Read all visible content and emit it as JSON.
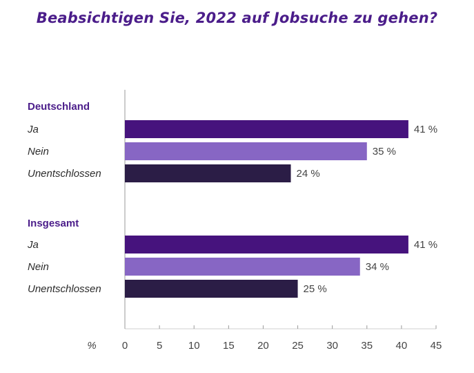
{
  "chart_data": {
    "type": "bar",
    "orientation": "horizontal",
    "title": "Beabsichtigen Sie, 2022 auf Jobsuche zu gehen?",
    "x_unit_label": "%",
    "xlim": [
      0,
      45
    ],
    "xticks": [
      0,
      5,
      10,
      15,
      20,
      25,
      30,
      35,
      40,
      45
    ],
    "grid": false,
    "groups": [
      {
        "name": "Deutschland",
        "bars": [
          {
            "category": "Ja",
            "value": 41,
            "label": "41 %",
            "color": "#46137d"
          },
          {
            "category": "Nein",
            "value": 35,
            "label": "35 %",
            "color": "#8766c4"
          },
          {
            "category": "Unentschlossen",
            "value": 24,
            "label": "24 %",
            "color": "#2b1d46"
          }
        ]
      },
      {
        "name": "Insgesamt",
        "bars": [
          {
            "category": "Ja",
            "value": 41,
            "label": "41 %",
            "color": "#46137d"
          },
          {
            "category": "Nein",
            "value": 34,
            "label": "34 %",
            "color": "#8766c4"
          },
          {
            "category": "Unentschlossen",
            "value": 25,
            "label": "25 %",
            "color": "#2b1d46"
          }
        ]
      }
    ]
  }
}
